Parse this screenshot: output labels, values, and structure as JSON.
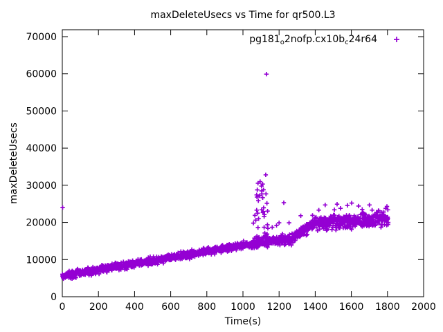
{
  "chart_data": {
    "type": "scatter",
    "title": "maxDeleteUsecs vs Time for qr500.L3",
    "xlabel": "Time(s)",
    "ylabel": "maxDeleteUsecs",
    "xlim": [
      0,
      2000
    ],
    "ylim": [
      0,
      70000
    ],
    "xticks": [
      0,
      200,
      400,
      600,
      800,
      1000,
      1200,
      1400,
      1600,
      1800,
      2000
    ],
    "yticks": [
      0,
      10000,
      20000,
      30000,
      40000,
      50000,
      60000,
      70000
    ],
    "grid": false,
    "legend_position": "top-right-inside",
    "background_color": "#ffffff",
    "axis_color": "#000000",
    "series": [
      {
        "name": "pg181_o2nofp.cx10b_c24r64",
        "label_parts": [
          {
            "t": "pg181",
            "sub": false
          },
          {
            "t": "o",
            "sub": true
          },
          {
            "t": "2nofp.cx10b",
            "sub": false
          },
          {
            "t": "c",
            "sub": true
          },
          {
            "t": "24r64",
            "sub": false
          }
        ],
        "marker": "plus",
        "color": "#9400D3",
        "x_data_range": [
          0,
          1805
        ],
        "trend_segments": [
          {
            "x0": 0,
            "x1": 1050,
            "y0": 5600,
            "y1": 14200,
            "sigma": 480,
            "n": 950
          },
          {
            "x0": 1050,
            "x1": 1150,
            "y0": 14300,
            "y1": 15000,
            "sigma": 650,
            "n": 95
          },
          {
            "x0": 1150,
            "x1": 1270,
            "y0": 15000,
            "y1": 15500,
            "sigma": 650,
            "n": 110
          },
          {
            "x0": 1270,
            "x1": 1400,
            "y0": 15600,
            "y1": 19800,
            "sigma": 700,
            "n": 115
          },
          {
            "x0": 1400,
            "x1": 1805,
            "y0": 19800,
            "y1": 21000,
            "sigma": 900,
            "n": 370
          }
        ],
        "spike_cluster": {
          "x_range": [
            1075,
            1140
          ],
          "n_column": 30,
          "y_column": [
            15800,
            28500
          ],
          "n_top": 6,
          "y_top": [
            28600,
            31300
          ]
        },
        "outliers": [
          [
            2,
            24000
          ],
          [
            1058,
            19800
          ],
          [
            1066,
            21900
          ],
          [
            1071,
            20600
          ],
          [
            1076,
            23300
          ],
          [
            1126,
            32800
          ],
          [
            1130,
            59900
          ],
          [
            1162,
            18700
          ],
          [
            1186,
            19200
          ],
          [
            1200,
            19900
          ],
          [
            1226,
            25300
          ],
          [
            1255,
            19900
          ],
          [
            1320,
            21800
          ],
          [
            1385,
            21900
          ],
          [
            1420,
            23300
          ],
          [
            1455,
            24700
          ],
          [
            1506,
            23400
          ],
          [
            1521,
            24900
          ],
          [
            1540,
            23800
          ],
          [
            1578,
            24600
          ],
          [
            1602,
            25200
          ],
          [
            1640,
            24400
          ],
          [
            1660,
            23500
          ],
          [
            1700,
            24700
          ],
          [
            1715,
            23300
          ],
          [
            1750,
            23200
          ],
          [
            1790,
            23800
          ],
          [
            1797,
            24300
          ],
          [
            1802,
            23400
          ]
        ]
      }
    ]
  }
}
